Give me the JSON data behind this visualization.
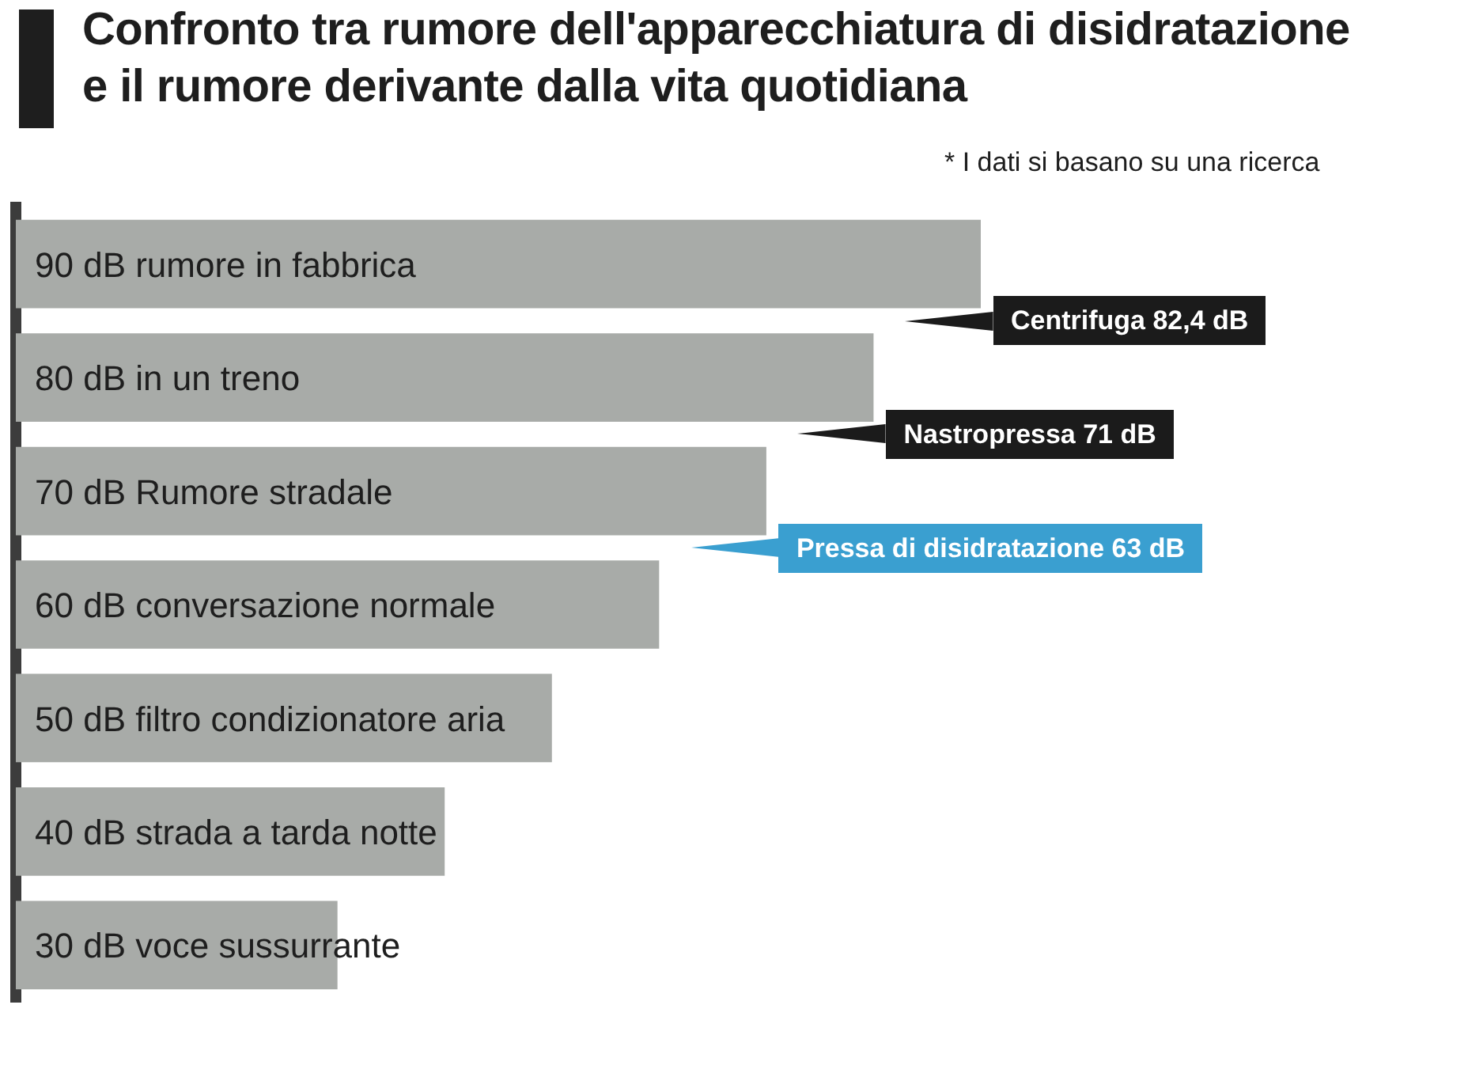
{
  "chart_data": {
    "type": "bar",
    "orientation": "horizontal",
    "title": "Confronto tra rumore dell'apparecchiatura di disidratazione\ne il rumore derivante dalla vita quotidiana",
    "categories": [
      "rumore in fabbrica",
      "in un treno",
      "Rumore stradale",
      "conversazione normale",
      "filtro condizionatore aria",
      "strada a tarda notte",
      "voce sussurrante"
    ],
    "values": [
      90,
      80,
      70,
      60,
      50,
      40,
      30
    ],
    "value_labels": [
      "90 dB",
      "80 dB",
      "70 dB",
      "60 dB",
      "50 dB",
      "40 dB",
      "30 dB"
    ],
    "color": "#a8aba8",
    "tick_labels": "y",
    "annotations": [
      "* I dati si basano su una ricerca",
      "Centrifuga 82,4 dB",
      "Nastropressa 71 dB",
      "Pressa di disidratazione 63 dB"
    ]
  }
}
